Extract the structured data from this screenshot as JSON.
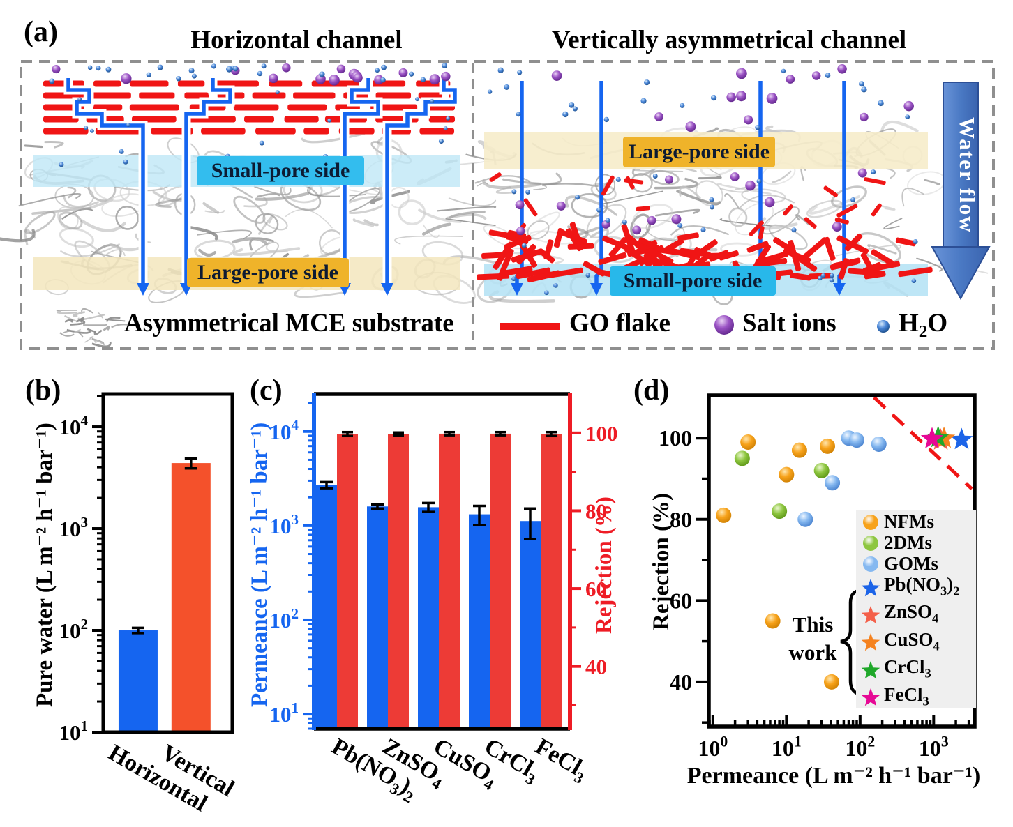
{
  "panels": {
    "a": {
      "tag": "(a)",
      "titles": {
        "left": "Horizontal channel",
        "right": "Vertically asymmetrical channel"
      },
      "bands": {
        "left_small": "Small-pore side",
        "left_large": "Large-pore side",
        "right_large": "Large-pore side",
        "right_small": "Small-pore side"
      },
      "water_flow": "Water flow",
      "legend": [
        {
          "icon": "mce-substrate-icon",
          "label": "Asymmetrical MCE substrate"
        },
        {
          "icon": "go-flake-icon",
          "label": "GO flake"
        },
        {
          "icon": "salt-ion-icon",
          "label": "Salt ions"
        },
        {
          "icon": "water-molecule-icon",
          "label": "H2O"
        }
      ]
    },
    "b": {
      "tag": "(b)"
    },
    "c": {
      "tag": "(c)"
    },
    "d": {
      "tag": "(d)"
    }
  },
  "colors": {
    "bar_blue": "#1565f0",
    "bar_red_b": "#f4512b",
    "bar_red_c": "#ed3b36",
    "axis_blue": "#1565f0",
    "axis_red": "#ee1c25",
    "go_red": "#f01515",
    "nfms": "#f7a21a",
    "twodms": "#8dc63f",
    "goms": "#85b8f0",
    "star_pb": "#1c64e8",
    "star_zn": "#f4604a",
    "star_cu": "#f5821f",
    "star_cr": "#1fa82a",
    "star_fe": "#e60895",
    "tradeoff": "#f01515",
    "water_arrow": "#4a79c4"
  },
  "chart_data": [
    {
      "id": "b",
      "type": "bar",
      "categories": [
        "Horizontal",
        "Vertical"
      ],
      "values": [
        100,
        4400
      ],
      "errors": [
        6,
        500
      ],
      "bar_color_keys": [
        "bar_blue",
        "bar_red_b"
      ],
      "ylabel": "Pure water (L m⁻² h⁻¹ bar⁻¹)",
      "yscale": "log",
      "ylim": [
        10,
        21000
      ],
      "yticks_exp": [
        1,
        2,
        3,
        4
      ],
      "grid": false
    },
    {
      "id": "c",
      "type": "bar-dual-axis",
      "categories": [
        "Pb(NO3)2",
        "ZnSO4",
        "CuSO4",
        "CrCl3",
        "FeCl3"
      ],
      "series": [
        {
          "name": "Permeance",
          "axis": "left",
          "color_key": "bar_blue",
          "values": [
            2700,
            1600,
            1570,
            1320,
            1120
          ],
          "errors": [
            200,
            80,
            170,
            300,
            400
          ]
        },
        {
          "name": "Rejection",
          "axis": "right",
          "color_key": "bar_red_c",
          "values": [
            99.7,
            99.7,
            99.8,
            99.8,
            99.7
          ],
          "errors": [
            0.5,
            0.4,
            0.4,
            0.4,
            0.5
          ]
        }
      ],
      "ylabel_left": "Permeance (L m⁻² h⁻¹ bar⁻¹)",
      "ylabel_right": "Rejection (%)",
      "yscale_left": "log",
      "ylim_left": [
        7,
        25000
      ],
      "yticks_left_exp": [
        1,
        2,
        3,
        4
      ],
      "ylim_right": [
        24,
        110
      ],
      "yticks_right": [
        40,
        60,
        80,
        100
      ],
      "grid": false
    },
    {
      "id": "d",
      "type": "scatter",
      "xlabel": "Permeance (L m⁻² h⁻¹ bar⁻¹)",
      "ylabel": "Rejection (%)",
      "xscale": "log",
      "xlim": [
        0.88,
        3600
      ],
      "xticks_exp": [
        0,
        1,
        2,
        3
      ],
      "ylim": [
        29,
        110.5
      ],
      "yticks": [
        40,
        60,
        80,
        100
      ],
      "legend_title": "This work",
      "legend_position": "lower right",
      "series": [
        {
          "name": "NFMs",
          "marker": "circle",
          "color_key": "nfms",
          "points": [
            [
              1.4,
              81
            ],
            [
              3,
              99
            ],
            [
              6.5,
              55
            ],
            [
              10,
              91
            ],
            [
              15,
              97
            ],
            [
              36,
              98
            ],
            [
              41,
              40
            ]
          ]
        },
        {
          "name": "2DMs",
          "marker": "circle",
          "color_key": "twodms",
          "points": [
            [
              2.5,
              95
            ],
            [
              8,
              82
            ],
            [
              30,
              92
            ]
          ]
        },
        {
          "name": "GOMs",
          "marker": "circle",
          "color_key": "goms",
          "points": [
            [
              18,
              80
            ],
            [
              42,
              89
            ],
            [
              70,
              100
            ],
            [
              90,
              99.5
            ],
            [
              180,
              98.5
            ]
          ]
        },
        {
          "name": "Pb(NO3)2",
          "marker": "star",
          "color_key": "star_pb",
          "this_work": true,
          "points": [
            [
              2400,
              99.6
            ]
          ]
        },
        {
          "name": "ZnSO4",
          "marker": "star",
          "color_key": "star_zn",
          "this_work": true,
          "points": [
            [
              1250,
              99.5
            ]
          ]
        },
        {
          "name": "CuSO4",
          "marker": "star",
          "color_key": "star_cu",
          "this_work": true,
          "points": [
            [
              1380,
              99.9
            ]
          ]
        },
        {
          "name": "CrCl3",
          "marker": "star",
          "color_key": "star_cr",
          "this_work": true,
          "points": [
            [
              1150,
              100.1
            ]
          ]
        },
        {
          "name": "FeCl3",
          "marker": "star",
          "color_key": "star_fe",
          "this_work": true,
          "points": [
            [
              950,
              99.8
            ]
          ]
        }
      ],
      "tradeoff_line": {
        "style": "dashed",
        "color_key": "tradeoff",
        "from": [
          155,
          110
        ],
        "to": [
          3300,
          87.5
        ]
      }
    }
  ]
}
